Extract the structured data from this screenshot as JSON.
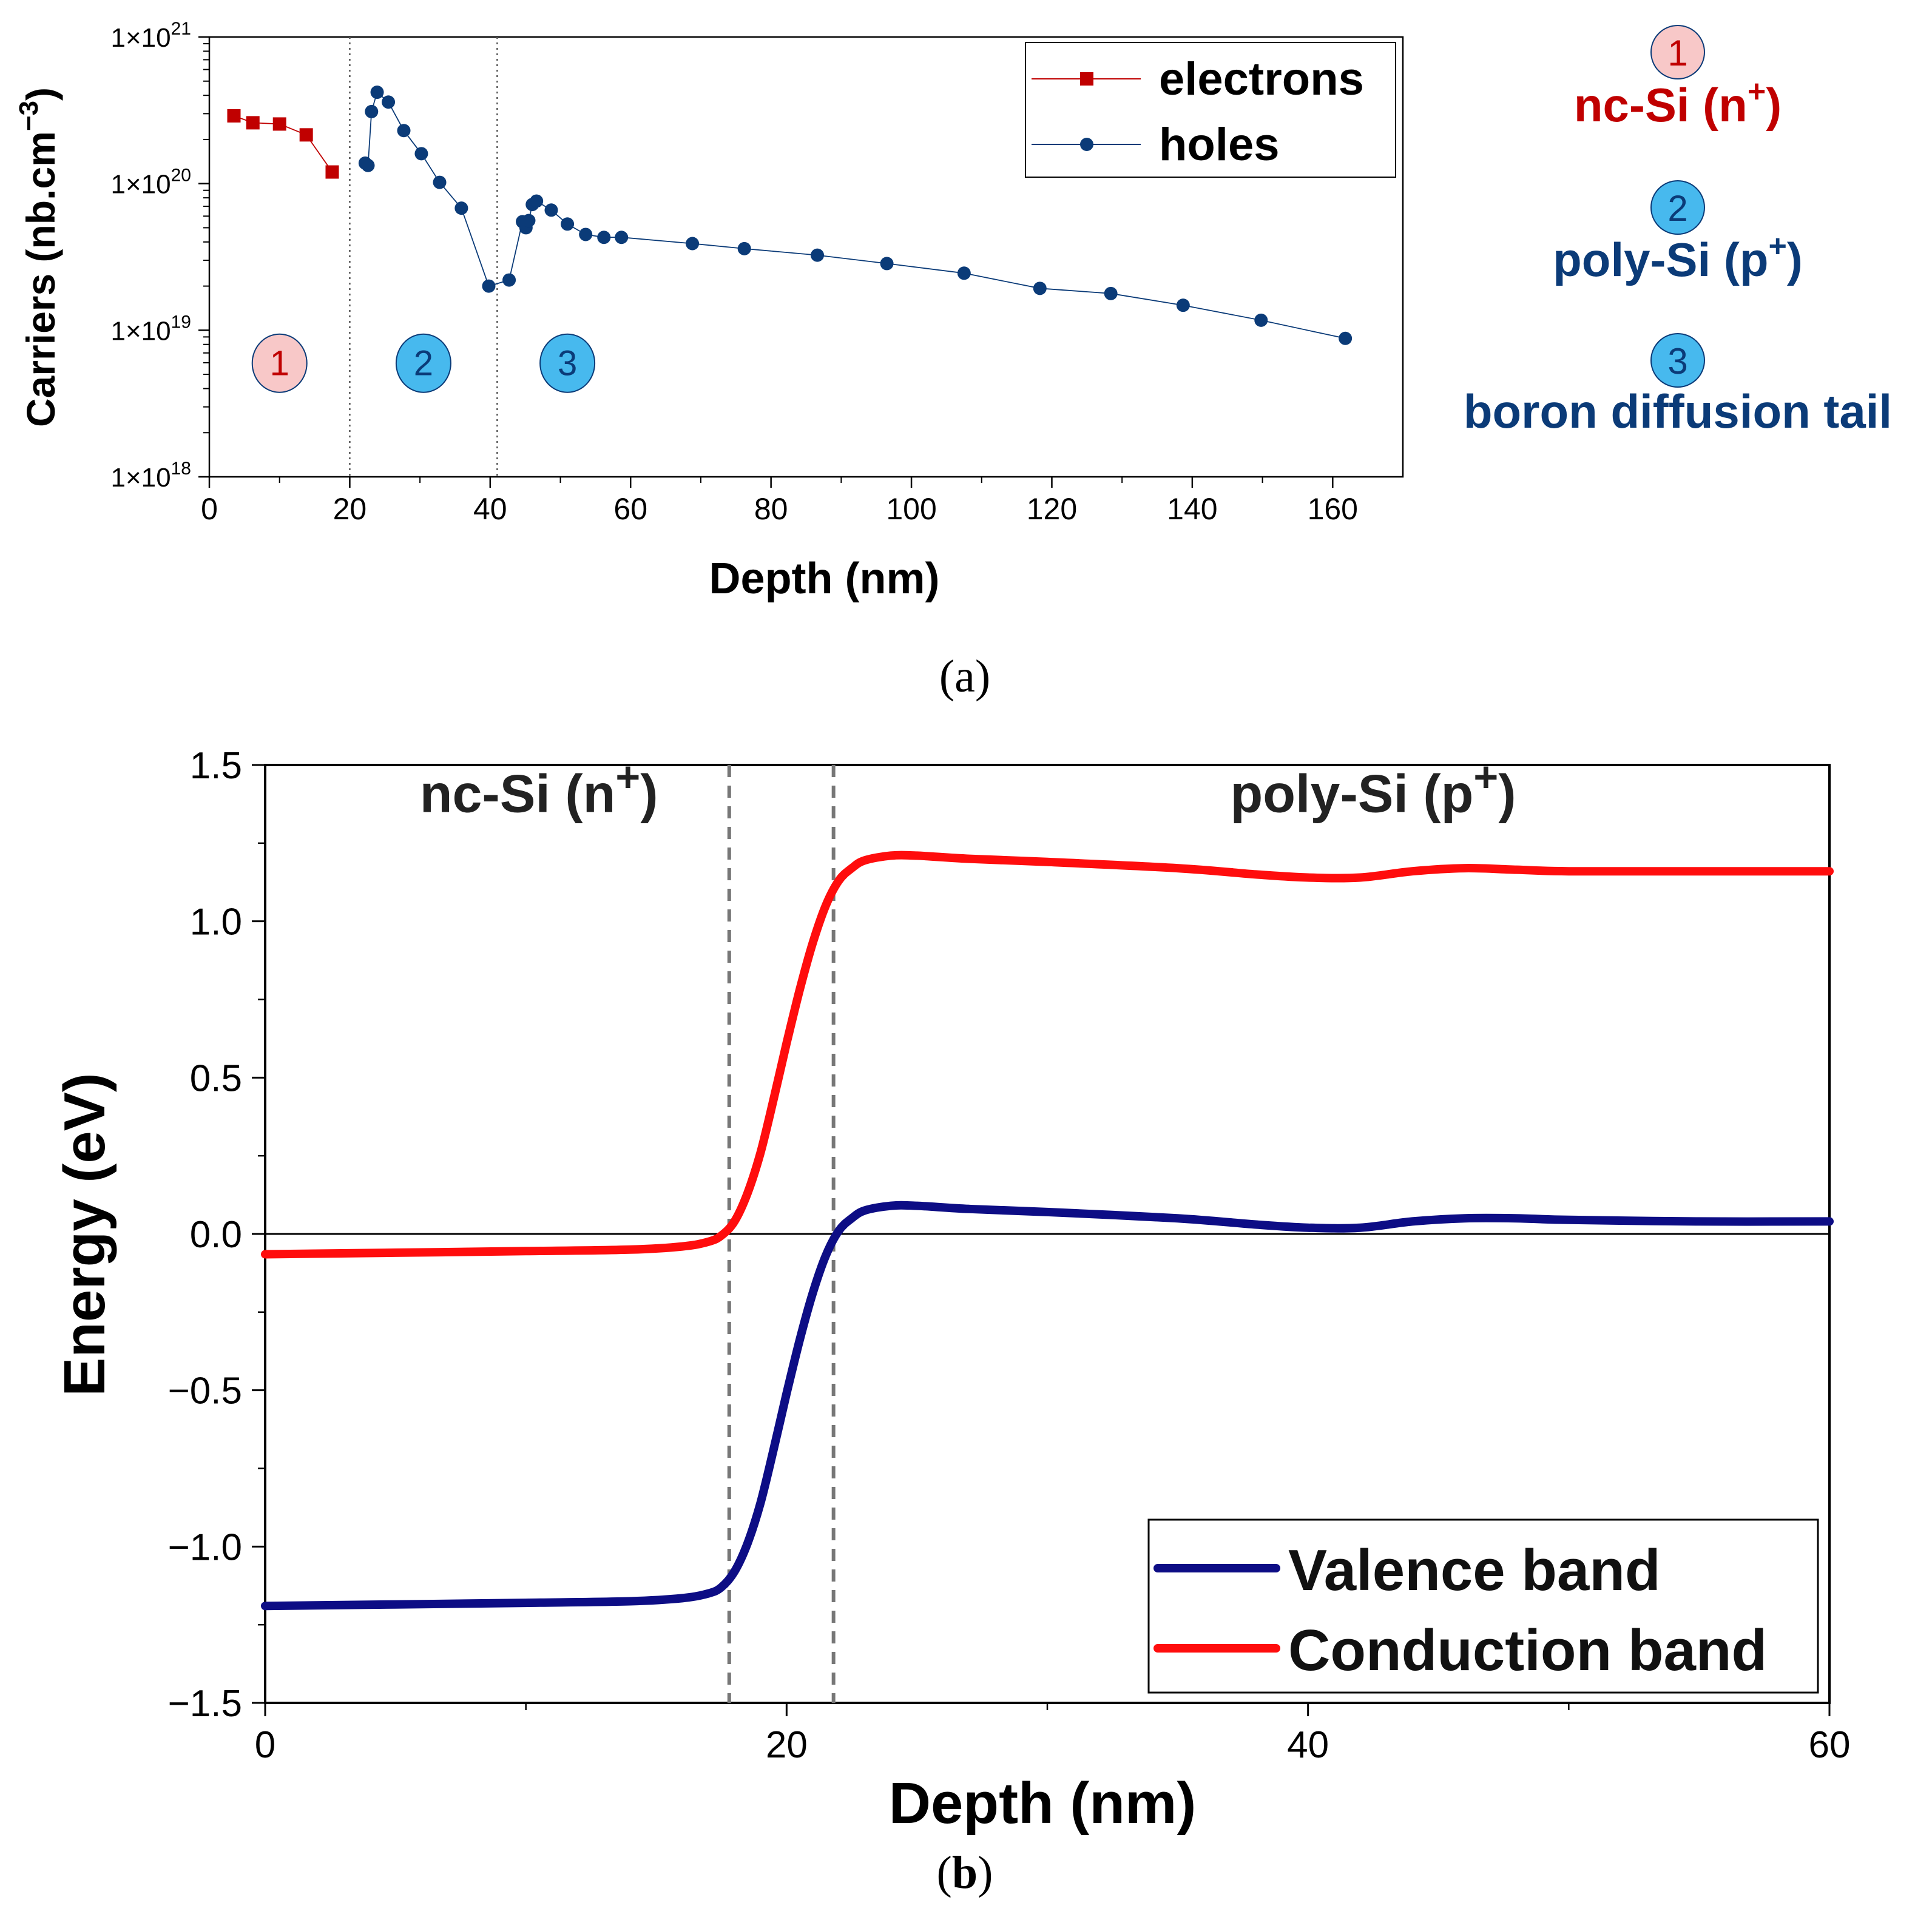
{
  "chart_data": [
    {
      "id": "a",
      "type": "scatter",
      "caption": "(a)",
      "xlabel": "Depth (nm)",
      "ylabel": "Carriers (nb.cm⁻³)",
      "ylabel_main": "Carriers (nb.cm",
      "ylabel_exp": "−3",
      "ylabel_close": ")",
      "yscale": "log",
      "xlim": [
        0,
        170
      ],
      "ylim": [
        1e+18,
        1e+21
      ],
      "xticks": [
        0,
        20,
        40,
        60,
        80,
        100,
        120,
        140,
        160
      ],
      "yticks": [
        {
          "value": 1e+18,
          "base": "1×10",
          "exp": "18"
        },
        {
          "value": 1e+19,
          "base": "1×10",
          "exp": "19"
        },
        {
          "value": 1e+20,
          "base": "1×10",
          "exp": "20"
        },
        {
          "value": 1e+21,
          "base": "1×10",
          "exp": "21"
        }
      ],
      "vlines": [
        20,
        41
      ],
      "legend_position": "top-right",
      "series": [
        {
          "name": "electrons",
          "color": "#c00000",
          "marker": "square",
          "x": [
            3.5,
            6.2,
            10.0,
            13.8,
            17.5
          ],
          "y": [
            2.9e+20,
            2.6e+20,
            2.55e+20,
            2.15e+20,
            1.2e+20
          ]
        },
        {
          "name": "holes",
          "color": "#0b3b78",
          "marker": "circle",
          "x": [
            22.2,
            22.6,
            23.1,
            23.9,
            25.5,
            27.7,
            30.2,
            32.8,
            35.9,
            39.8,
            42.7,
            44.6,
            45.1,
            45.5,
            46.0,
            46.6,
            48.7,
            51.0,
            53.6,
            56.2,
            58.7,
            68.8,
            76.2,
            86.6,
            96.5,
            107.5,
            118.3,
            128.4,
            138.7,
            149.8,
            161.8
          ],
          "y": [
            1.38e+20,
            1.33e+20,
            3.1e+20,
            4.2e+20,
            3.6e+20,
            2.3e+20,
            1.6e+20,
            1.02e+20,
            6.8e+19,
            2e+19,
            2.2e+19,
            5.5e+19,
            5e+19,
            5.6e+19,
            7.2e+19,
            7.6e+19,
            6.6e+19,
            5.3e+19,
            4.5e+19,
            4.3e+19,
            4.3e+19,
            3.9e+19,
            3.6e+19,
            3.25e+19,
            2.85e+19,
            2.45e+19,
            1.93e+19,
            1.78e+19,
            1.48e+19,
            1.17e+19,
            8.8e+18
          ]
        }
      ],
      "annotations": [
        {
          "label": "1",
          "x": 10,
          "y": 3e+18,
          "color": "#f8c8c8",
          "text_color": "#c00000"
        },
        {
          "label": "2",
          "x": 30.5,
          "y": 3e+18,
          "color": "#47b9ee",
          "text_color": "#0b3b78"
        },
        {
          "label": "3",
          "x": 51,
          "y": 3e+18,
          "color": "#47b9ee",
          "text_color": "#0b3b78"
        }
      ],
      "side_legend": [
        {
          "num": "1",
          "text": "nc-Si (n",
          "sup": "+",
          "close": ")",
          "badge_color": "#f8c8c8",
          "num_color": "#c00000",
          "text_color": "#c00000"
        },
        {
          "num": "2",
          "text": "poly-Si (p",
          "sup": "+",
          "close": ")",
          "badge_color": "#47b9ee",
          "num_color": "#0b3b78",
          "text_color": "#0b3b78"
        },
        {
          "num": "3",
          "text": "boron diffusion tail",
          "sup": "",
          "close": "",
          "badge_color": "#47b9ee",
          "num_color": "#0b3b78",
          "text_color": "#0b3b78"
        }
      ]
    },
    {
      "id": "b",
      "type": "line",
      "caption": "(b)",
      "caption_text": "b",
      "xlabel": "Depth (nm)",
      "ylabel": "Energy (eV)",
      "xlim": [
        0,
        60
      ],
      "ylim": [
        -1.5,
        1.5
      ],
      "xticks": [
        0,
        20,
        40,
        60
      ],
      "yticks": [
        1.5,
        1.0,
        0.5,
        0.0,
        -0.5,
        -1.0,
        -1.5
      ],
      "ytick_labels": [
        "1.5",
        "1.0",
        "0.5",
        "0.0",
        "−0.5",
        "−1.0",
        "−1.5"
      ],
      "hline": 0,
      "vlines": [
        17.8,
        21.8
      ],
      "legend_position": "bottom-right",
      "region_labels": [
        {
          "text": "nc-Si (n",
          "sup": "+",
          "close": ")",
          "x": 10.5,
          "y": 1.35
        },
        {
          "text": "poly-Si (p",
          "sup": "+",
          "close": ")",
          "x": 42.5,
          "y": 1.35
        }
      ],
      "series": [
        {
          "name": "Valence band",
          "color": "#0d0d85",
          "x": [
            0,
            5,
            10,
            14,
            16,
            17,
            17.5,
            18,
            18.5,
            19,
            19.5,
            20,
            20.5,
            21,
            21.5,
            22,
            22.5,
            23,
            24,
            25,
            27,
            30,
            35,
            38,
            40,
            42,
            44,
            46,
            48,
            50,
            55,
            60
          ],
          "y": [
            -1.19,
            -1.185,
            -1.18,
            -1.175,
            -1.165,
            -1.15,
            -1.13,
            -1.08,
            -0.99,
            -0.86,
            -0.69,
            -0.51,
            -0.34,
            -0.19,
            -0.07,
            0.01,
            0.05,
            0.075,
            0.09,
            0.09,
            0.08,
            0.07,
            0.05,
            0.03,
            0.02,
            0.02,
            0.04,
            0.05,
            0.05,
            0.045,
            0.04,
            0.04
          ]
        },
        {
          "name": "Conduction band",
          "color": "#ff0d0d",
          "x": [
            0,
            5,
            10,
            14,
            16,
            17,
            17.5,
            18,
            18.5,
            19,
            19.5,
            20,
            20.5,
            21,
            21.5,
            22,
            22.5,
            23,
            24,
            25,
            27,
            30,
            35,
            38,
            40,
            42,
            44,
            46,
            48,
            50,
            55,
            60
          ],
          "y": [
            -0.065,
            -0.06,
            -0.055,
            -0.05,
            -0.04,
            -0.025,
            -0.005,
            0.04,
            0.13,
            0.26,
            0.43,
            0.61,
            0.78,
            0.93,
            1.05,
            1.13,
            1.17,
            1.195,
            1.21,
            1.21,
            1.2,
            1.19,
            1.17,
            1.15,
            1.14,
            1.14,
            1.16,
            1.17,
            1.165,
            1.16,
            1.16,
            1.16
          ]
        }
      ]
    }
  ]
}
